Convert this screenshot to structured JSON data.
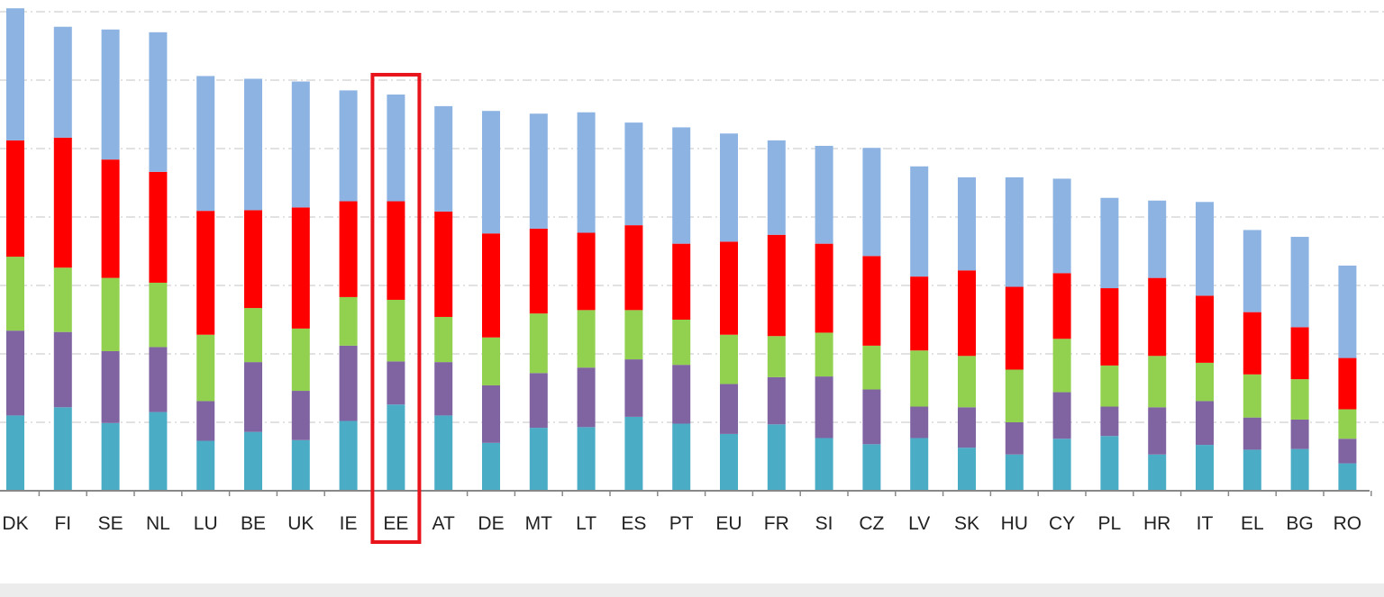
{
  "chart_data": {
    "type": "bar",
    "stacked": true,
    "title": "",
    "xlabel": "",
    "ylabel": "",
    "ylim": [
      0,
      70
    ],
    "grid": true,
    "categories": [
      "DK",
      "FI",
      "SE",
      "NL",
      "LU",
      "BE",
      "UK",
      "IE",
      "EE",
      "AT",
      "DE",
      "MT",
      "LT",
      "ES",
      "PT",
      "EU",
      "FR",
      "SI",
      "CZ",
      "LV",
      "SK",
      "HU",
      "CY",
      "PL",
      "HR",
      "IT",
      "EL",
      "BG",
      "RO"
    ],
    "highlighted_category": "EE",
    "series": [
      {
        "color": "#4bacc6",
        "values": [
          11.0,
          12.2,
          9.9,
          11.5,
          7.3,
          8.6,
          7.4,
          10.2,
          12.6,
          11.0,
          7.0,
          9.2,
          9.3,
          10.8,
          9.8,
          8.3,
          9.7,
          7.7,
          6.8,
          7.7,
          6.3,
          5.3,
          7.6,
          8.0,
          5.3,
          6.7,
          6.0,
          6.1,
          4.0
        ]
      },
      {
        "color": "#8064a2",
        "values": [
          12.4,
          11.0,
          10.5,
          9.5,
          5.8,
          10.2,
          7.2,
          11.0,
          6.3,
          7.8,
          8.4,
          8.0,
          8.7,
          8.4,
          8.6,
          7.3,
          6.9,
          9.0,
          8.0,
          4.6,
          5.9,
          4.7,
          6.8,
          4.3,
          6.9,
          6.4,
          4.7,
          4.3,
          3.6
        ]
      },
      {
        "color": "#92d050",
        "values": [
          10.8,
          9.4,
          10.7,
          9.4,
          9.7,
          7.9,
          9.1,
          7.1,
          9.0,
          6.6,
          7.0,
          8.7,
          8.4,
          7.2,
          6.6,
          7.2,
          6.0,
          6.4,
          6.4,
          8.2,
          7.5,
          7.7,
          7.8,
          6.0,
          7.5,
          5.6,
          6.3,
          5.9,
          4.3
        ]
      },
      {
        "color": "#ff0000",
        "values": [
          17.0,
          19.0,
          17.3,
          16.2,
          18.1,
          14.3,
          17.7,
          14.0,
          14.4,
          15.4,
          15.2,
          12.4,
          11.3,
          12.4,
          11.1,
          13.6,
          14.8,
          13.0,
          13.1,
          10.8,
          12.5,
          12.1,
          9.6,
          11.3,
          11.4,
          9.8,
          9.1,
          7.6,
          7.5
        ]
      },
      {
        "color": "#8db3e2",
        "values": [
          19.3,
          16.2,
          19.0,
          20.4,
          19.7,
          19.2,
          18.4,
          16.2,
          15.6,
          15.4,
          17.9,
          16.8,
          17.6,
          15.0,
          17.0,
          15.8,
          13.8,
          14.3,
          15.8,
          16.1,
          13.6,
          16.0,
          13.8,
          13.2,
          11.3,
          13.7,
          12.0,
          13.2,
          13.5
        ]
      }
    ]
  }
}
